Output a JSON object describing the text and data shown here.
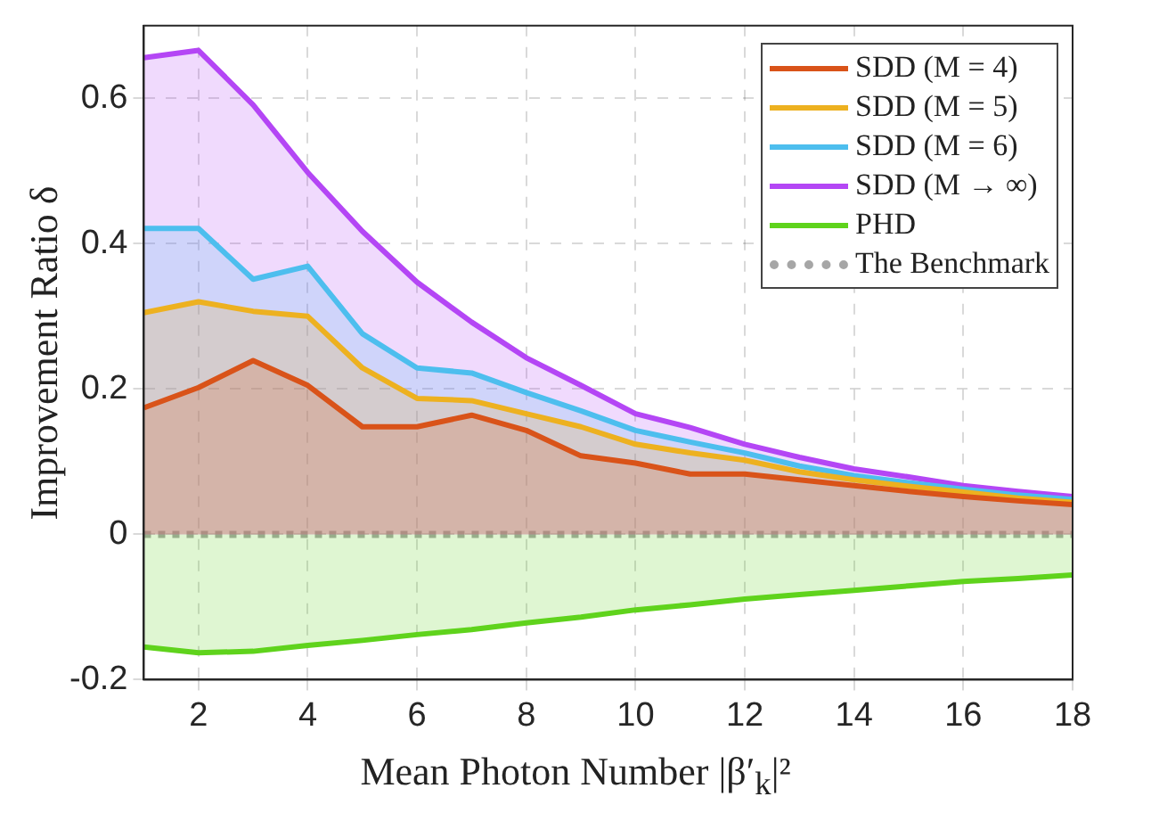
{
  "chart_data": {
    "type": "area",
    "xlabel": "Mean Photon Number |β′$_{k}$|²",
    "ylabel": "Improvement Ratio δ",
    "x": [
      1,
      2,
      3,
      4,
      5,
      6,
      7,
      8,
      9,
      10,
      11,
      12,
      13,
      14,
      15,
      16,
      17,
      18
    ],
    "xlim": [
      1,
      18
    ],
    "xticks": [
      2,
      4,
      6,
      8,
      10,
      12,
      14,
      16,
      18
    ],
    "ylim": [
      -0.2,
      0.7
    ],
    "yticks": [
      -0.2,
      0,
      0.2,
      0.4,
      0.6
    ],
    "grid": true,
    "legend": "top right",
    "line_style": "solid",
    "marker": "none",
    "series": [
      {
        "name": "SDD (M = 4)",
        "color": "#d95319",
        "values": [
          0.174,
          0.202,
          0.239,
          0.205,
          0.148,
          0.148,
          0.164,
          0.143,
          0.108,
          0.098,
          0.083,
          0.083,
          0.075,
          0.067,
          0.059,
          0.052,
          0.046,
          0.041
        ]
      },
      {
        "name": "SDD (M = 5)",
        "color": "#edb120",
        "values": [
          0.305,
          0.32,
          0.307,
          0.3,
          0.229,
          0.187,
          0.184,
          0.166,
          0.148,
          0.124,
          0.112,
          0.102,
          0.086,
          0.075,
          0.066,
          0.058,
          0.05,
          0.044
        ]
      },
      {
        "name": "SDD (M = 6)",
        "color": "#4dbeee",
        "values": [
          0.421,
          0.421,
          0.351,
          0.369,
          0.276,
          0.229,
          0.222,
          0.195,
          0.17,
          0.143,
          0.127,
          0.112,
          0.094,
          0.081,
          0.071,
          0.062,
          0.054,
          0.048
        ]
      },
      {
        "name": "SDD (M → ∞)",
        "color": "#b446f5",
        "values": [
          0.656,
          0.666,
          0.591,
          0.498,
          0.417,
          0.347,
          0.292,
          0.243,
          0.205,
          0.166,
          0.147,
          0.124,
          0.106,
          0.09,
          0.079,
          0.067,
          0.059,
          0.052
        ]
      },
      {
        "name": "PHD",
        "color": "#5fd31c",
        "values": [
          -0.155,
          -0.163,
          -0.161,
          -0.153,
          -0.146,
          -0.138,
          -0.131,
          -0.122,
          -0.114,
          -0.104,
          -0.097,
          -0.089,
          -0.083,
          -0.077,
          -0.071,
          -0.065,
          -0.061,
          -0.056
        ]
      },
      {
        "name": "The Benchmark",
        "type": "line",
        "line_style": "dotted",
        "color": "#a6a6a6",
        "values": [
          0,
          0,
          0,
          0,
          0,
          0,
          0,
          0,
          0,
          0,
          0,
          0,
          0,
          0,
          0,
          0,
          0,
          0
        ]
      }
    ]
  }
}
